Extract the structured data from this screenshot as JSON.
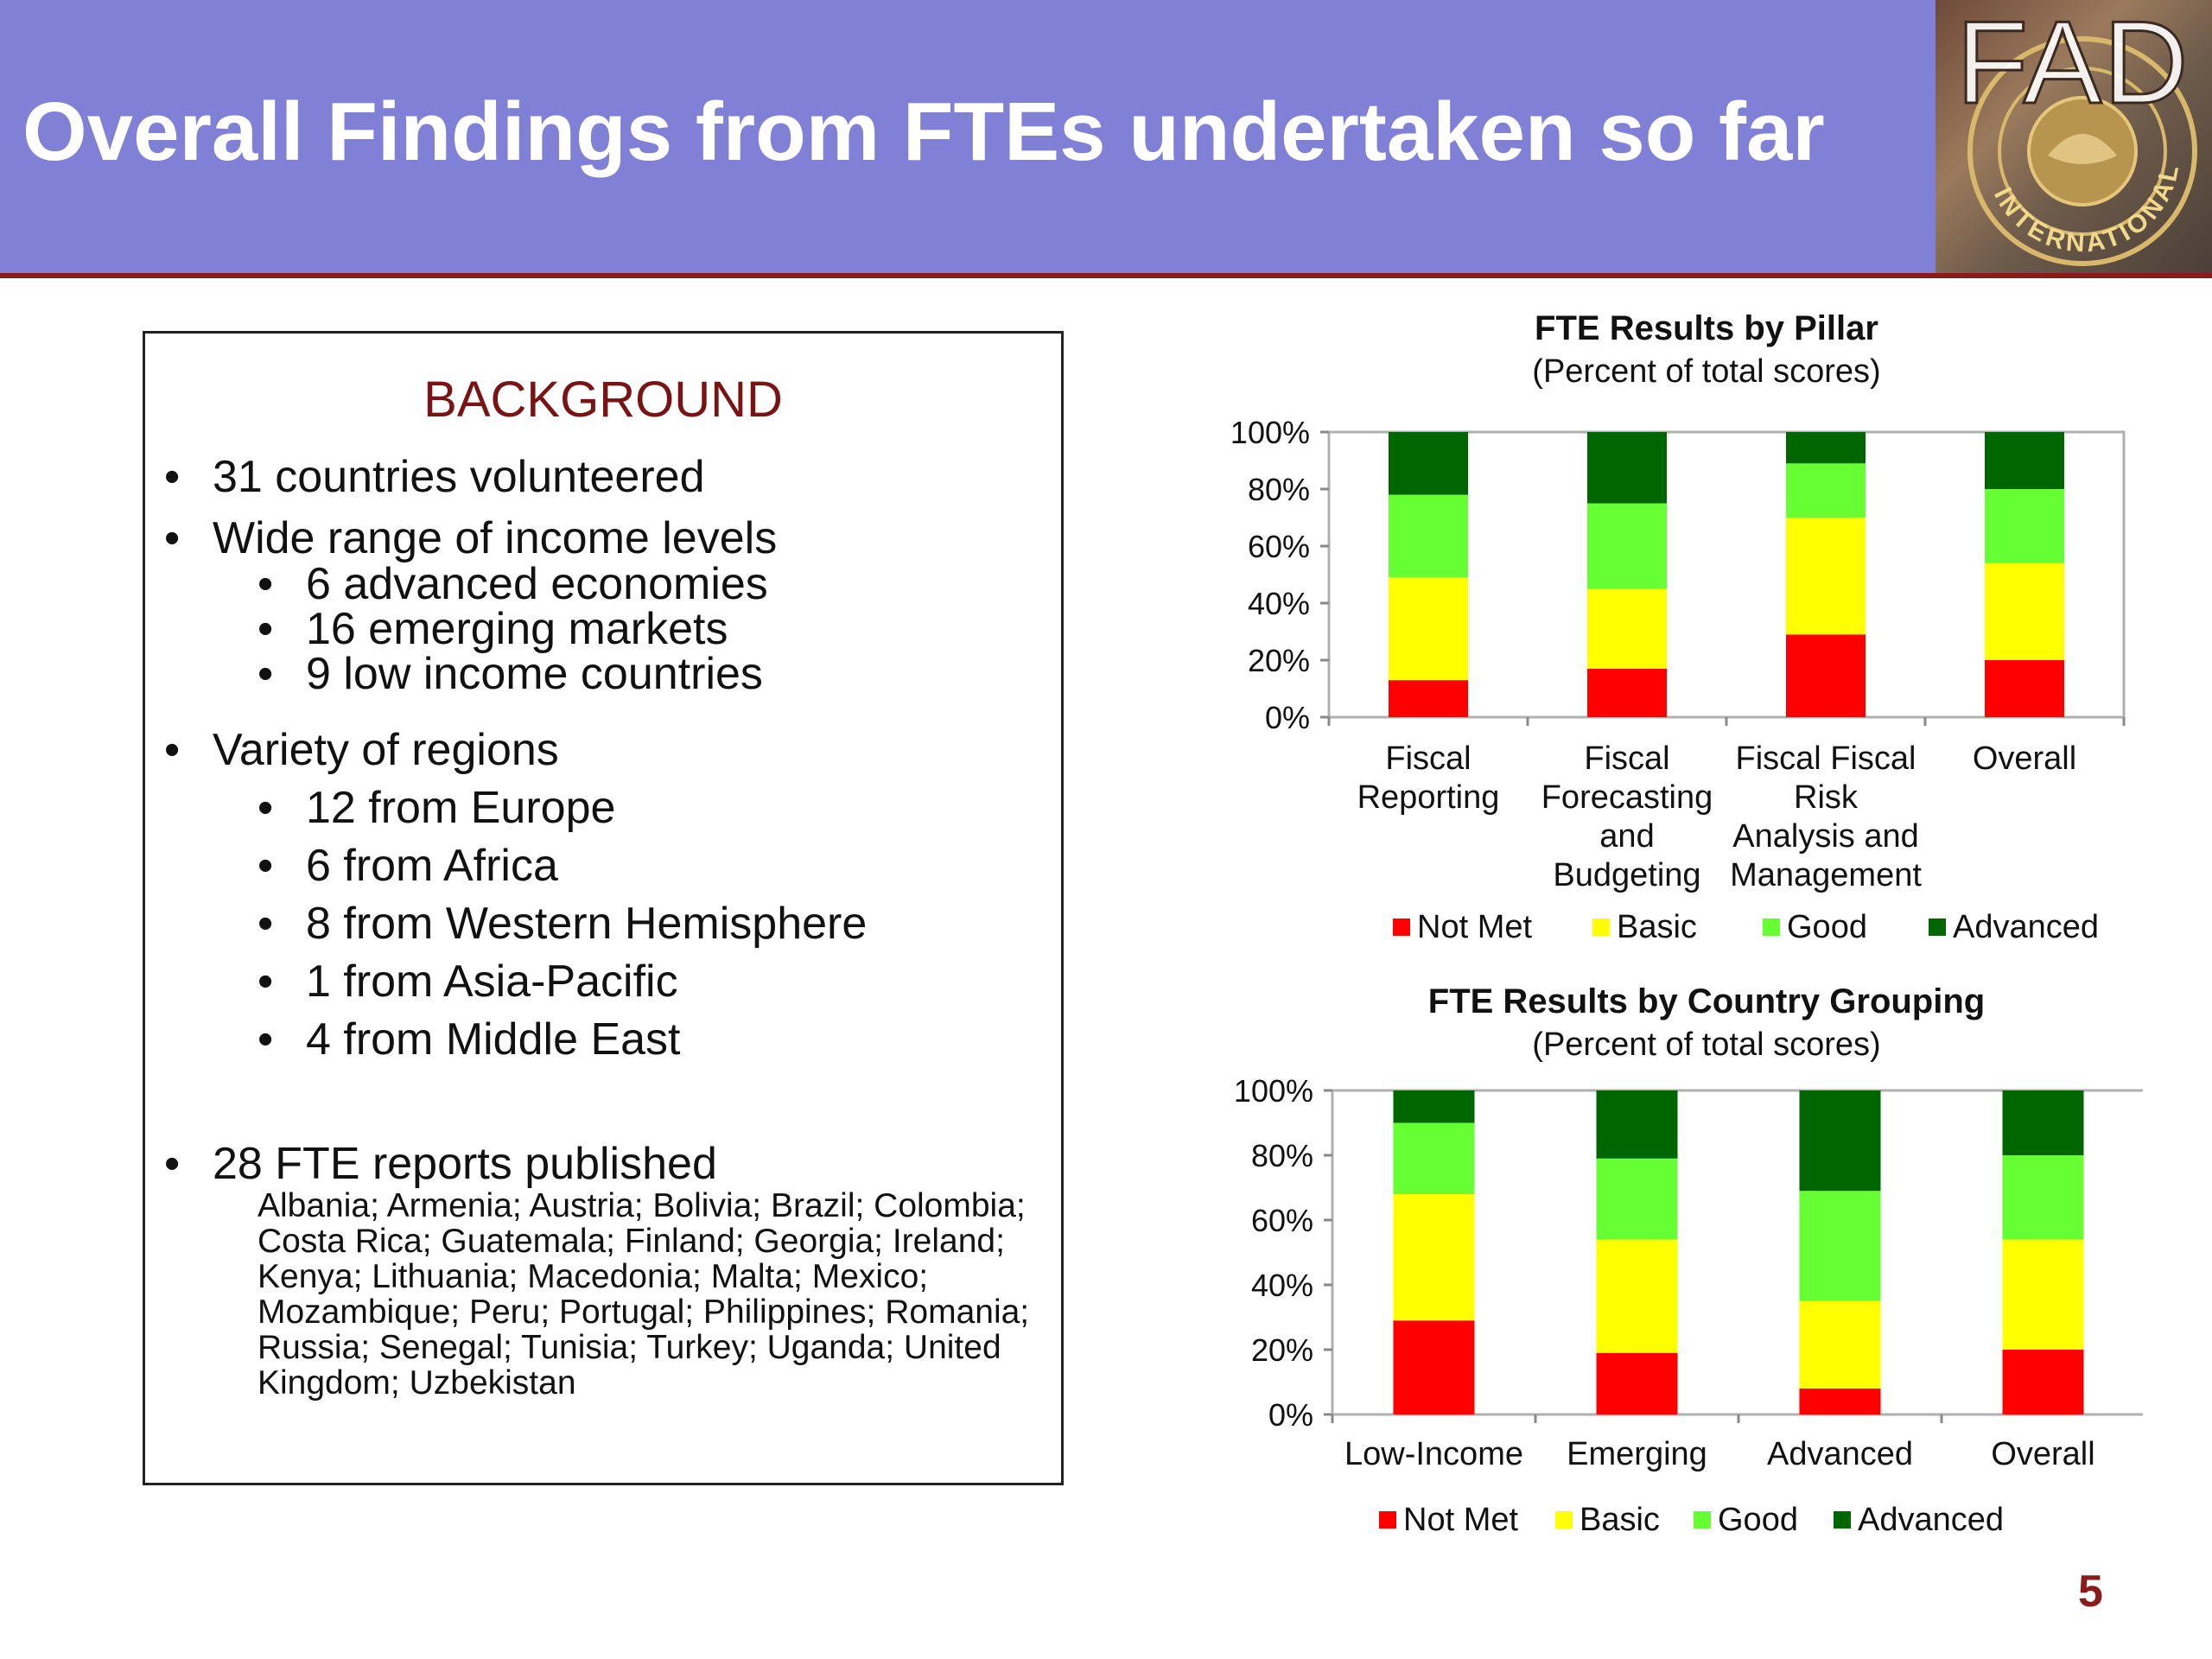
{
  "header": {
    "title": "Overall Findings from FTEs undertaken so far",
    "logo_text": "FAD",
    "logo_seal_text": "INTERNATIONAL MONETARY FUND"
  },
  "background": {
    "heading": "BACKGROUND",
    "bullet_symbol": "•",
    "item_countries": "31 countries volunteered",
    "item_income": "Wide range of income levels",
    "income_sub": [
      "6 advanced economies",
      "16 emerging markets",
      "9 low income countries"
    ],
    "item_regions": "Variety of regions",
    "regions_sub": [
      "12 from Europe",
      "6 from Africa",
      "8 from Western Hemisphere",
      "1 from Asia-Pacific",
      "4 from Middle East"
    ],
    "item_reports": "28 FTE reports published",
    "reports_list": "Albania; Armenia; Austria; Bolivia; Brazil; Colombia; Costa Rica; Guatemala; Finland; Georgia; Ireland; Kenya; Lithuania; Macedonia; Malta; Mexico; Mozambique; Peru; Portugal; Philippines; Romania; Russia; Senegal; Tunisia; Turkey; Uganda; United Kingdom; Uzbekistan"
  },
  "page_number": "5",
  "colors": {
    "not_met": "#ff0000",
    "basic": "#ffff00",
    "good": "#66ff33",
    "advanced": "#006600"
  },
  "chart_data": [
    {
      "type": "bar",
      "stacked": true,
      "title": "FTE Results by Pillar",
      "subtitle": "(Percent of total scores)",
      "categories": [
        [
          "Fiscal",
          "Reporting"
        ],
        [
          "Fiscal",
          "Forecasting",
          "and",
          "Budgeting"
        ],
        [
          "Fiscal Fiscal",
          "Risk",
          "Analysis and",
          "Management"
        ],
        [
          "Overall"
        ]
      ],
      "series": [
        {
          "name": "Not Met",
          "values": [
            13,
            17,
            29,
            20
          ]
        },
        {
          "name": "Basic",
          "values": [
            36,
            28,
            41,
            34
          ]
        },
        {
          "name": "Good",
          "values": [
            29,
            30,
            19,
            26
          ]
        },
        {
          "name": "Advanced",
          "values": [
            22,
            25,
            11,
            20
          ]
        }
      ],
      "ylim": [
        0,
        100
      ],
      "yticks": [
        "0%",
        "20%",
        "40%",
        "60%",
        "80%",
        "100%"
      ],
      "legend": "bottom"
    },
    {
      "type": "bar",
      "stacked": true,
      "title": "FTE Results by Country Grouping",
      "subtitle": "(Percent of total scores)",
      "categories": [
        [
          "Low-Income"
        ],
        [
          "Emerging"
        ],
        [
          "Advanced"
        ],
        [
          "Overall"
        ]
      ],
      "series": [
        {
          "name": "Not Met",
          "values": [
            29,
            19,
            8,
            20
          ]
        },
        {
          "name": "Basic",
          "values": [
            39,
            35,
            27,
            34
          ]
        },
        {
          "name": "Good",
          "values": [
            22,
            25,
            34,
            26
          ]
        },
        {
          "name": "Advanced",
          "values": [
            10,
            21,
            31,
            20
          ]
        }
      ],
      "ylim": [
        0,
        100
      ],
      "yticks": [
        "0%",
        "20%",
        "40%",
        "60%",
        "80%",
        "100%"
      ],
      "legend": "bottom"
    }
  ]
}
